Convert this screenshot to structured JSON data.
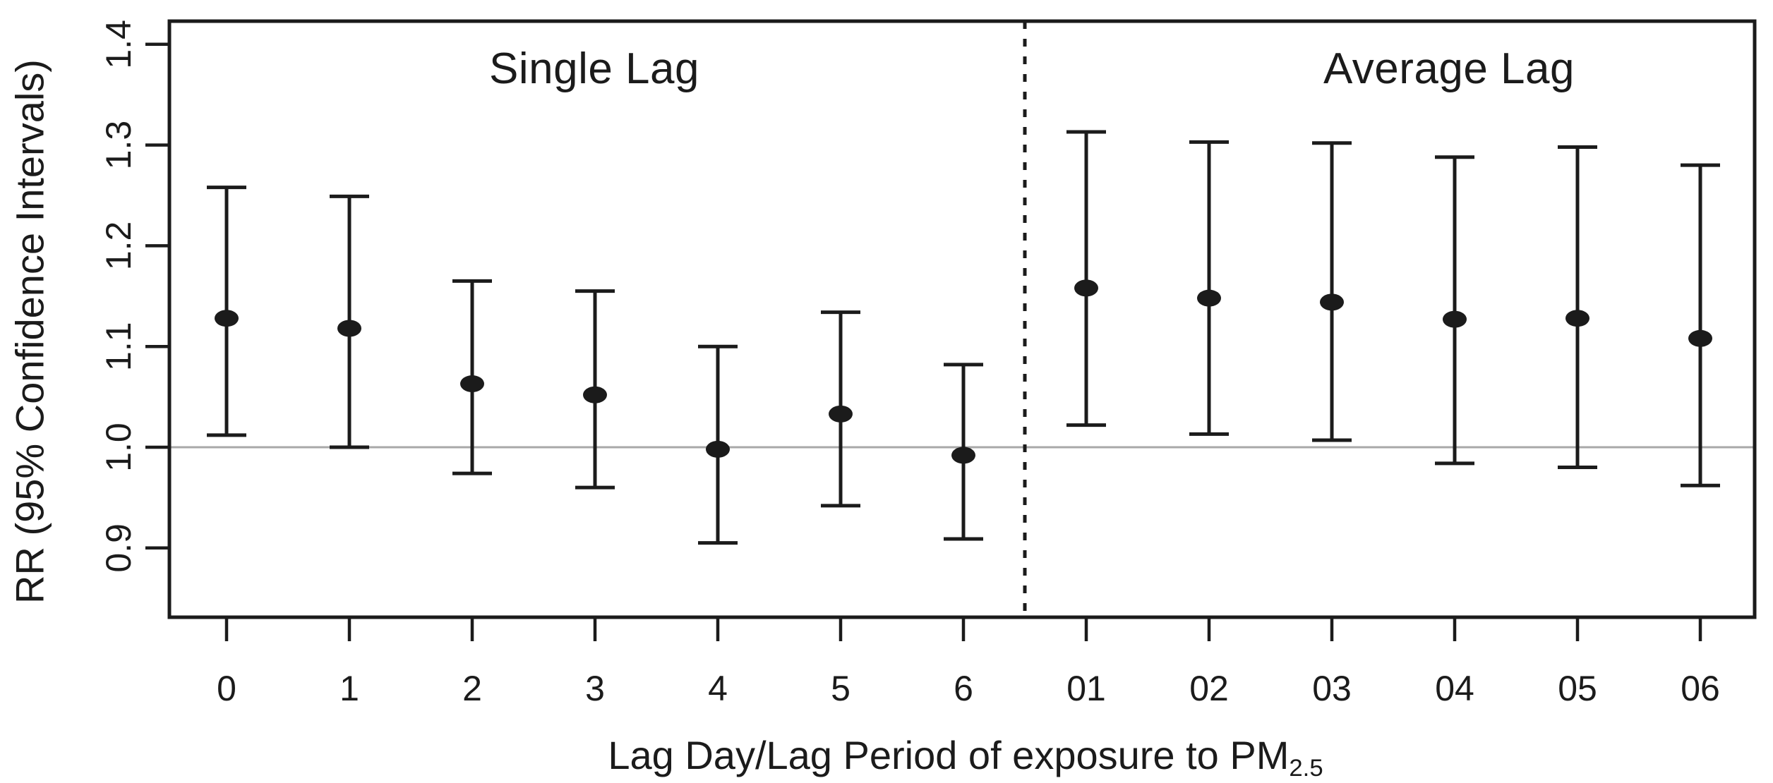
{
  "page": {
    "background": "#ffffff"
  },
  "chart_data": {
    "type": "scatter",
    "subtype": "point-estimates-with-95ci-error-bars",
    "title": "",
    "ylabel": "RR (95% Confidence Intervals)",
    "xlabel_main": "Lag Day/Lag Period of exposure to PM",
    "xlabel_subscript": "2.5",
    "ylim": [
      0.831,
      1.423
    ],
    "yticks": [
      0.9,
      1.0,
      1.1,
      1.2,
      1.3,
      1.4
    ],
    "ytick_labels": [
      "0.9",
      "1.0",
      "1.1",
      "1.2",
      "1.3",
      "1.4"
    ],
    "reference_line_y": 1.0,
    "grid": false,
    "legend": null,
    "sections": [
      {
        "label": "Single Lag",
        "category_span": [
          "0",
          "6"
        ]
      },
      {
        "label": "Average Lag",
        "category_span": [
          "01",
          "06"
        ]
      }
    ],
    "divider_after_category_index": 6,
    "divider_style": "dashed",
    "categories": [
      "0",
      "1",
      "2",
      "3",
      "4",
      "5",
      "6",
      "01",
      "02",
      "03",
      "04",
      "05",
      "06"
    ],
    "series": [
      {
        "name": "RR",
        "values": [
          1.128,
          1.118,
          1.063,
          1.052,
          0.998,
          1.033,
          0.992,
          1.158,
          1.148,
          1.144,
          1.127,
          1.128,
          1.108
        ],
        "ci_low": [
          1.012,
          1.0,
          0.974,
          0.96,
          0.905,
          0.942,
          0.909,
          1.022,
          1.013,
          1.007,
          0.984,
          0.98,
          0.962
        ],
        "ci_high": [
          1.258,
          1.249,
          1.165,
          1.155,
          1.1,
          1.134,
          1.082,
          1.313,
          1.303,
          1.302,
          1.288,
          1.298,
          1.28
        ]
      }
    ],
    "colors": {
      "point": "#1b1b1b",
      "error_bar": "#1b1b1b",
      "axis": "#1b1b1b",
      "text": "#1b1b1b",
      "reference_line": "#a8a8a8",
      "divider": "#1b1b1b",
      "background": "#ffffff"
    }
  }
}
